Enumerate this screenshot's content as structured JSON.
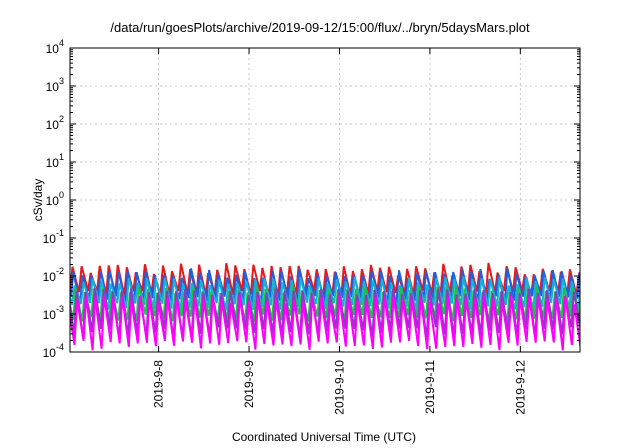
{
  "chart_data": {
    "type": "line",
    "title": "/data/run/goesPlots/archive/2019-09-12/15:00/flux/../bryn/5daysMars.plot",
    "ylabel": "cSv/day",
    "xlabel": "Coordinated Universal Time (UTC)",
    "y_scale": "log",
    "ylim": [
      0.0001,
      10000
    ],
    "xlim": [
      0,
      5.64
    ],
    "y_ticks": [
      {
        "base": "10",
        "exp": "4",
        "value": 10000
      },
      {
        "base": "10",
        "exp": "3",
        "value": 1000
      },
      {
        "base": "10",
        "exp": "2",
        "value": 100
      },
      {
        "base": "10",
        "exp": "1",
        "value": 10
      },
      {
        "base": "10",
        "exp": "0",
        "value": 1
      },
      {
        "base": "10",
        "exp": "-1",
        "value": 0.1
      },
      {
        "base": "10",
        "exp": "-2",
        "value": 0.01
      },
      {
        "base": "10",
        "exp": "-3",
        "value": 0.001
      },
      {
        "base": "10",
        "exp": "-4",
        "value": 0.0001
      }
    ],
    "x_ticks": [
      {
        "label": "2019-9-8",
        "value": 0.98
      },
      {
        "label": "2019-9-9",
        "value": 1.98
      },
      {
        "label": "2019-9-10",
        "value": 2.98
      },
      {
        "label": "2019-9-11",
        "value": 3.98
      },
      {
        "label": "2019-9-12",
        "value": 4.98
      }
    ],
    "grid": true,
    "period_days": 0.1,
    "series": [
      {
        "name": "red",
        "color": "#e41a1c",
        "peak_range": [
          0.01,
          0.022
        ],
        "trough_range": [
          0.0028,
          0.0042
        ],
        "offset": 0.0
      },
      {
        "name": "blue",
        "color": "#2060e0",
        "peak_range": [
          0.008,
          0.016
        ],
        "trough_range": [
          0.0018,
          0.003
        ],
        "offset": 0.01
      },
      {
        "name": "cyan",
        "color": "#18b0d8",
        "peak_range": [
          0.0055,
          0.0095
        ],
        "trough_range": [
          0.0012,
          0.002
        ],
        "offset": 0.022
      },
      {
        "name": "green",
        "color": "#20c050",
        "peak_range": [
          0.0035,
          0.0055
        ],
        "trough_range": [
          0.0006,
          0.001
        ],
        "offset": 0.035
      },
      {
        "name": "purple",
        "color": "#8a3cc0",
        "peak_range": [
          0.003,
          0.0048
        ],
        "trough_range": [
          0.00022,
          0.00045
        ],
        "offset": 0.045
      },
      {
        "name": "magenta",
        "color": "#ff00ff",
        "peak_range": [
          0.0018,
          0.003
        ],
        "trough_range": [
          0.00011,
          0.0002
        ],
        "offset": 0.05
      }
    ]
  }
}
